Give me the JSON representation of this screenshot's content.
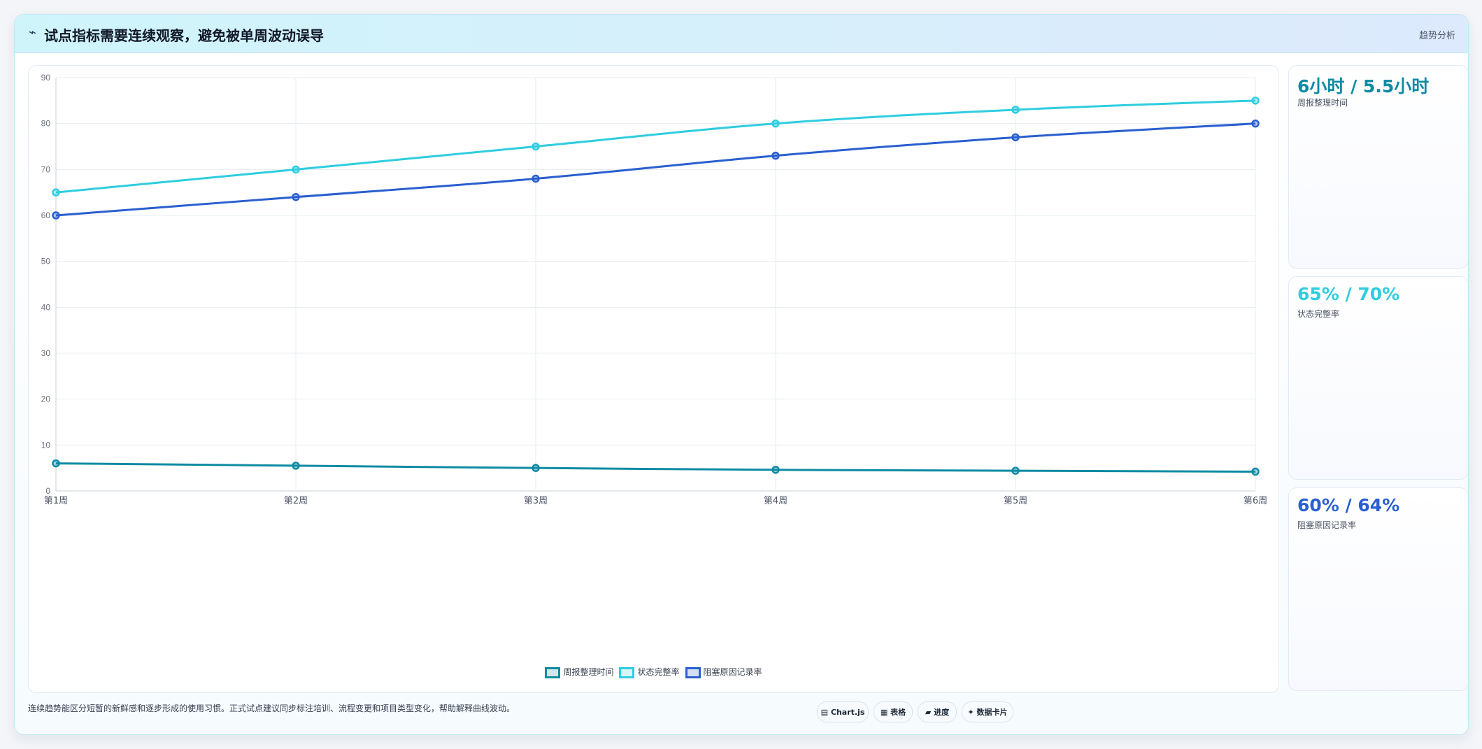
{
  "header": {
    "icon": "trend-icon",
    "title": "试点指标需要连续观察，避免被单周波动误导",
    "tag": "趋势分析"
  },
  "chart_data": {
    "type": "line",
    "categories": [
      "第1周",
      "第2周",
      "第3周",
      "第4周",
      "第5周",
      "第6周"
    ],
    "series": [
      {
        "name": "周报整理时间",
        "color": "#0e8ba3",
        "values": [
          6,
          5.5,
          5,
          4.6,
          4.4,
          4.2
        ]
      },
      {
        "name": "状态完整率",
        "color": "#2fcde0",
        "values": [
          65,
          70,
          75,
          80,
          83,
          85
        ]
      },
      {
        "name": "阻塞原因记录率",
        "color": "#2a5fcf",
        "values": [
          60,
          64,
          68,
          73,
          77,
          80
        ]
      }
    ],
    "ylim": [
      0,
      90
    ],
    "yticks": [
      0,
      10,
      20,
      30,
      40,
      50,
      60,
      70,
      80,
      90
    ],
    "grid": true,
    "legend_position": "bottom"
  },
  "stats": [
    {
      "value": "6小时 / 5.5小时",
      "label": "周报整理时间",
      "color": "#0e8ba3"
    },
    {
      "value": "65% / 70%",
      "label": "状态完整率",
      "color": "#2fcde0"
    },
    {
      "value": "60% / 64%",
      "label": "阻塞原因记录率",
      "color": "#2a5fcf"
    }
  ],
  "footer": {
    "note": "连续趋势能区分短暂的新鲜感和逐步形成的使用习惯。正式试点建议同步标注培训、流程变更和项目类型变化，帮助解释曲线波动。",
    "chips": [
      {
        "icon": "chart-icon",
        "glyph": "▤",
        "label": "Chart.js"
      },
      {
        "icon": "table-icon",
        "glyph": "▦",
        "label": "表格"
      },
      {
        "icon": "progress-icon",
        "glyph": "▰",
        "label": "进度"
      },
      {
        "icon": "sparkle-icon",
        "glyph": "✦",
        "label": "数据卡片"
      }
    ]
  }
}
